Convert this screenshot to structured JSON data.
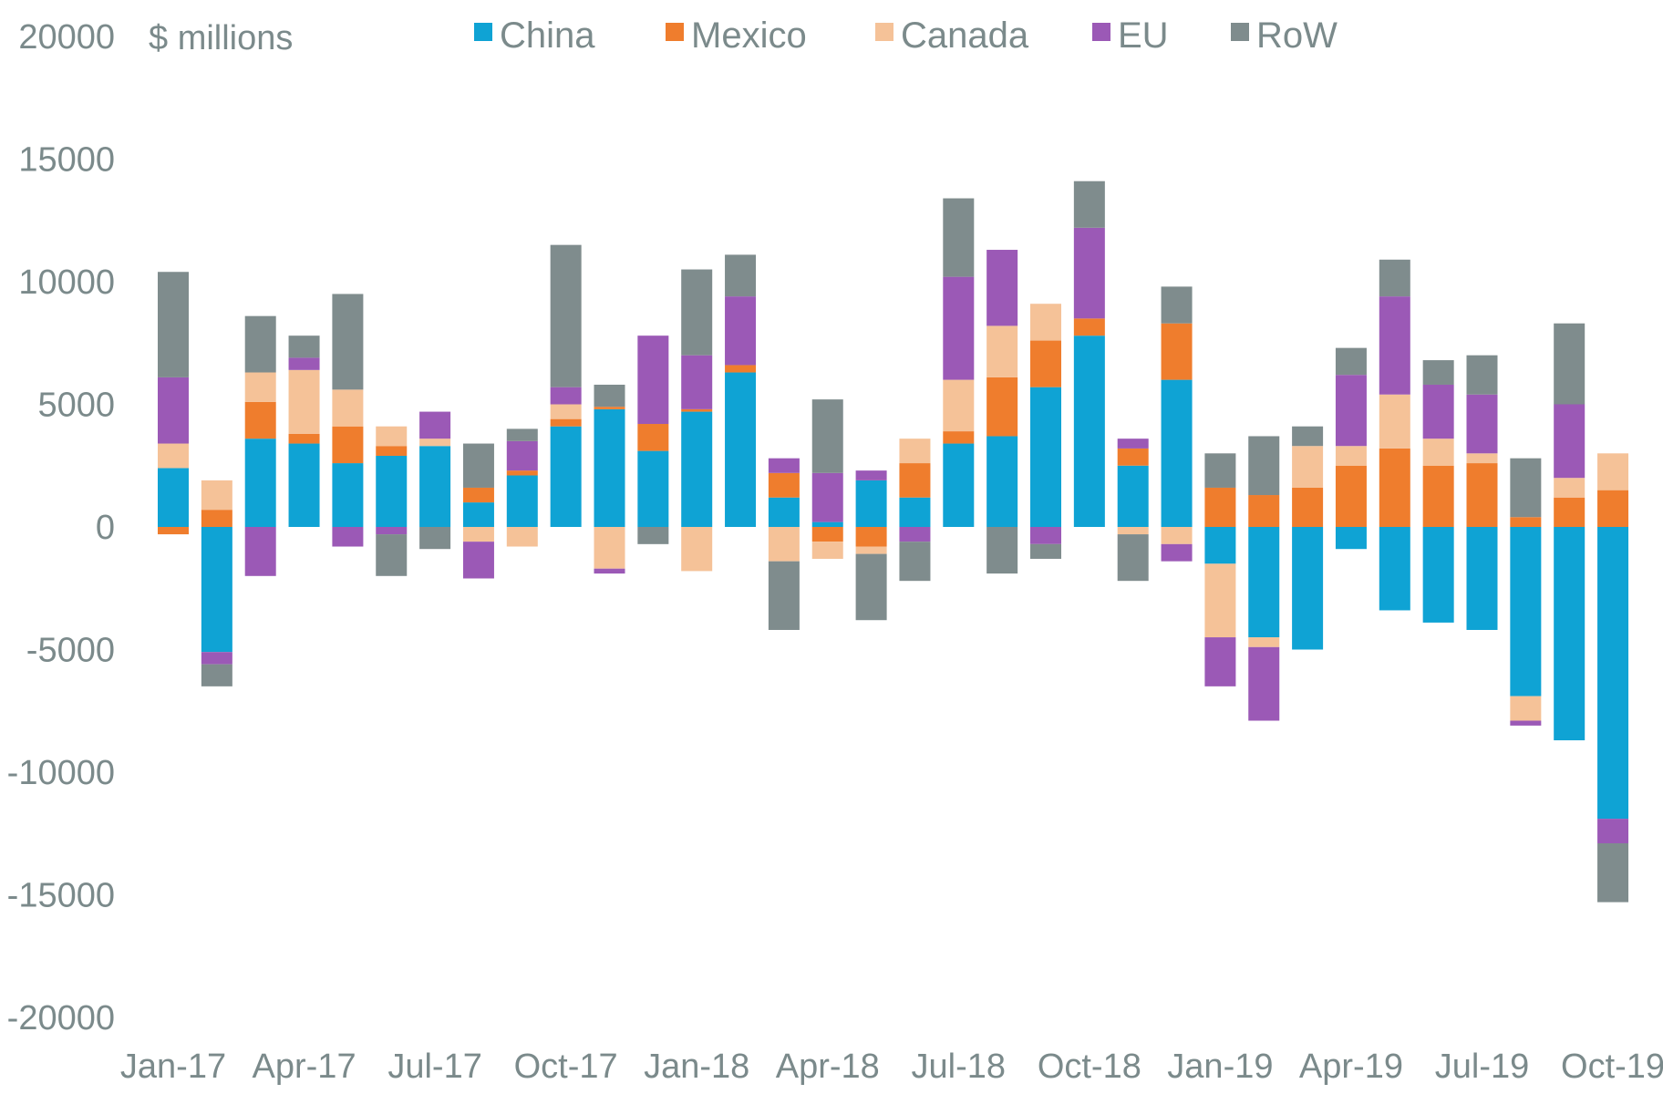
{
  "chart_data": {
    "type": "bar",
    "stacked": true,
    "unit_label": "$ millions",
    "legend_position": "top",
    "grid": false,
    "ylim": [
      -20000,
      20000
    ],
    "y_ticks": [
      20000,
      15000,
      10000,
      5000,
      0,
      -5000,
      -10000,
      -15000,
      -20000
    ],
    "y_tick_labels": [
      "20000",
      "15000",
      "10000",
      "5000",
      "0",
      "-5000",
      "-10000",
      "-15000",
      "-20000"
    ],
    "categories": [
      "Jan-17",
      "Feb-17",
      "Mar-17",
      "Apr-17",
      "May-17",
      "Jun-17",
      "Jul-17",
      "Aug-17",
      "Sep-17",
      "Oct-17",
      "Nov-17",
      "Dec-17",
      "Jan-18",
      "Feb-18",
      "Mar-18",
      "Apr-18",
      "May-18",
      "Jun-18",
      "Jul-18",
      "Aug-18",
      "Sep-18",
      "Oct-18",
      "Nov-18",
      "Dec-18",
      "Jan-19",
      "Feb-19",
      "Mar-19",
      "Apr-19",
      "May-19",
      "Jun-19",
      "Jul-19",
      "Aug-19",
      "Sep-19",
      "Oct-19"
    ],
    "x_tick_labels": [
      {
        "index": 0,
        "label": "Jan-17"
      },
      {
        "index": 3,
        "label": "Apr-17"
      },
      {
        "index": 6,
        "label": "Jul-17"
      },
      {
        "index": 9,
        "label": "Oct-17"
      },
      {
        "index": 12,
        "label": "Jan-18"
      },
      {
        "index": 15,
        "label": "Apr-18"
      },
      {
        "index": 18,
        "label": "Jul-18"
      },
      {
        "index": 21,
        "label": "Oct-18"
      },
      {
        "index": 24,
        "label": "Jan-19"
      },
      {
        "index": 27,
        "label": "Apr-19"
      },
      {
        "index": 30,
        "label": "Jul-19"
      },
      {
        "index": 33,
        "label": "Oct-19"
      }
    ],
    "series": [
      {
        "name": "China",
        "color": "#0fa3d4",
        "values": [
          2400,
          -5100,
          3600,
          3400,
          2600,
          2900,
          3300,
          1000,
          2100,
          4100,
          4800,
          3100,
          4700,
          6300,
          1200,
          200,
          1900,
          1200,
          3400,
          3700,
          5700,
          7800,
          2500,
          6000,
          -1500,
          -4500,
          -5000,
          -900,
          -3400,
          -3900,
          -4200,
          -6900,
          -8700,
          -11900
        ]
      },
      {
        "name": "Mexico",
        "color": "#ef7d2d",
        "values": [
          -300,
          700,
          1500,
          400,
          1500,
          400,
          0,
          600,
          200,
          300,
          100,
          1100,
          100,
          300,
          1000,
          -600,
          -800,
          1400,
          500,
          2400,
          1900,
          700,
          700,
          2300,
          1600,
          1300,
          1600,
          2500,
          3200,
          2500,
          2600,
          400,
          1200,
          1500
        ]
      },
      {
        "name": "Canada",
        "color": "#f5c298",
        "values": [
          1000,
          1200,
          1200,
          2600,
          1500,
          800,
          300,
          -600,
          -800,
          600,
          -1700,
          0,
          -1800,
          0,
          -1400,
          -700,
          -300,
          1000,
          2100,
          2100,
          1500,
          0,
          -300,
          -700,
          -3000,
          -400,
          1700,
          800,
          2200,
          1100,
          400,
          -1000,
          800,
          1500
        ]
      },
      {
        "name": "EU",
        "color": "#9b59b6",
        "values": [
          2700,
          -500,
          -2000,
          500,
          -800,
          -300,
          1100,
          -1500,
          1200,
          700,
          -200,
          3600,
          2200,
          2800,
          600,
          2000,
          400,
          -600,
          4200,
          3100,
          -700,
          3700,
          400,
          -700,
          -2000,
          -3000,
          0,
          2900,
          4000,
          2200,
          2400,
          -200,
          3000,
          -1000
        ]
      },
      {
        "name": "RoW",
        "color": "#7f8c8d",
        "values": [
          4300,
          -900,
          2300,
          900,
          3900,
          -1700,
          -900,
          1800,
          500,
          5800,
          900,
          -700,
          3500,
          1700,
          -2800,
          3000,
          -2700,
          -1600,
          3200,
          -1900,
          -600,
          1900,
          -1900,
          1500,
          1400,
          2400,
          800,
          1100,
          1500,
          1000,
          1600,
          2400,
          3300,
          -2400
        ]
      }
    ]
  }
}
